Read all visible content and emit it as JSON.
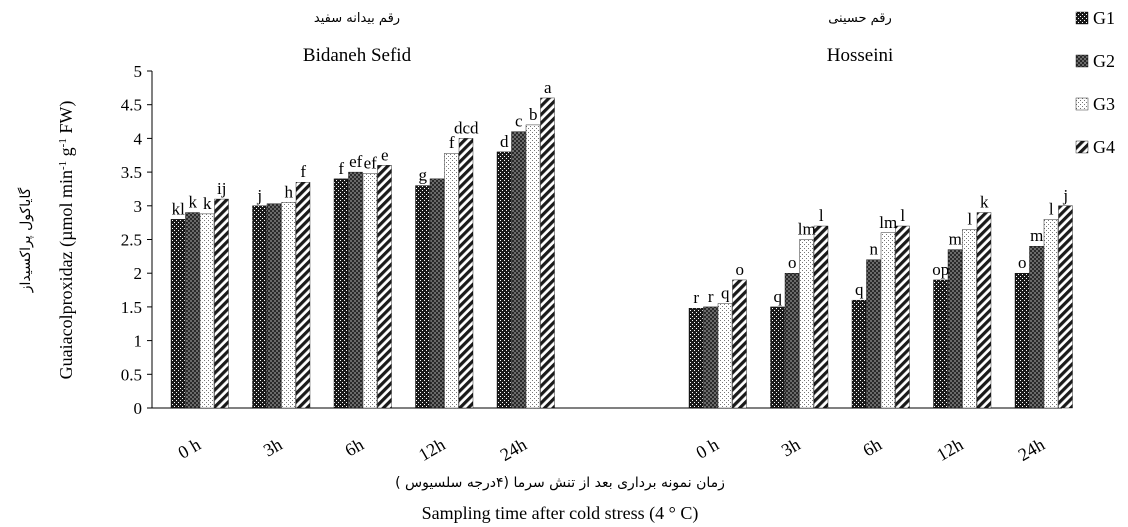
{
  "chart_data": {
    "type": "bar",
    "ylabel": "Guaiacolproxidaz (µmol min-1 g-1 FW)",
    "ylabel_parts": [
      "Guaiacolproxidaz (µmol min",
      "-1",
      " g",
      "-1",
      " FW)"
    ],
    "ylabel_fa": "گایاکول پراکسیداز",
    "xlabel": "Sampling time after cold stress (4 ° C)",
    "xlabel_fa": "زمان نمونه برداری بعد از تنش سرما (۴درجه سلسیوس )",
    "ylim": [
      0,
      5
    ],
    "yticks": [
      "0",
      "0.5",
      "1",
      "1.5",
      "2",
      "2.5",
      "3",
      "3.5",
      "4",
      "4.5",
      "5"
    ],
    "legend_position": "right",
    "legend": [
      "G1",
      "G2",
      "G3",
      "G4"
    ],
    "groups": [
      {
        "title_fa": "رقم بیدانه سفید",
        "title_en": "Bidaneh Sefid",
        "categories": [
          "0 h",
          "3h",
          "6h",
          "12h",
          "24h"
        ],
        "series": [
          {
            "name": "G1",
            "values": [
              2.8,
              3.0,
              3.4,
              3.3,
              3.8
            ]
          },
          {
            "name": "G2",
            "values": [
              2.9,
              3.03,
              3.5,
              3.4,
              4.1
            ]
          },
          {
            "name": "G3",
            "values": [
              2.88,
              3.05,
              3.48,
              3.78,
              4.2
            ]
          },
          {
            "name": "G4",
            "values": [
              3.1,
              3.35,
              3.6,
              4.0,
              4.6
            ]
          }
        ],
        "letters": [
          [
            "kl",
            "j",
            "f",
            "g",
            "d"
          ],
          [
            "k",
            "",
            "ef",
            "",
            "c"
          ],
          [
            "k",
            "h",
            "ef",
            "f",
            "b"
          ],
          [
            "ij",
            "f",
            "e",
            "dcd",
            "a"
          ]
        ]
      },
      {
        "title_fa": "رقم حسینی",
        "title_en": "Hosseini",
        "categories": [
          "0 h",
          "3h",
          "6h",
          "12h",
          "24h"
        ],
        "series": [
          {
            "name": "G1",
            "values": [
              1.48,
              1.5,
              1.6,
              1.9,
              2.0
            ]
          },
          {
            "name": "G2",
            "values": [
              1.5,
              2.0,
              2.2,
              2.35,
              2.4
            ]
          },
          {
            "name": "G3",
            "values": [
              1.55,
              2.5,
              2.6,
              2.65,
              2.8
            ]
          },
          {
            "name": "G4",
            "values": [
              1.9,
              2.7,
              2.7,
              2.9,
              3.0
            ]
          }
        ],
        "letters": [
          [
            "r",
            "q",
            "q",
            "op",
            "o"
          ],
          [
            "r",
            "o",
            "n",
            "m",
            "m"
          ],
          [
            "q",
            "lm",
            "lm",
            "l",
            "l"
          ],
          [
            "o",
            "l",
            "l",
            "k",
            "j"
          ]
        ]
      }
    ]
  },
  "colors": {
    "G1": "#111111",
    "G2": "#555555",
    "G3": "#bdbdbd",
    "G4": "#222222"
  }
}
